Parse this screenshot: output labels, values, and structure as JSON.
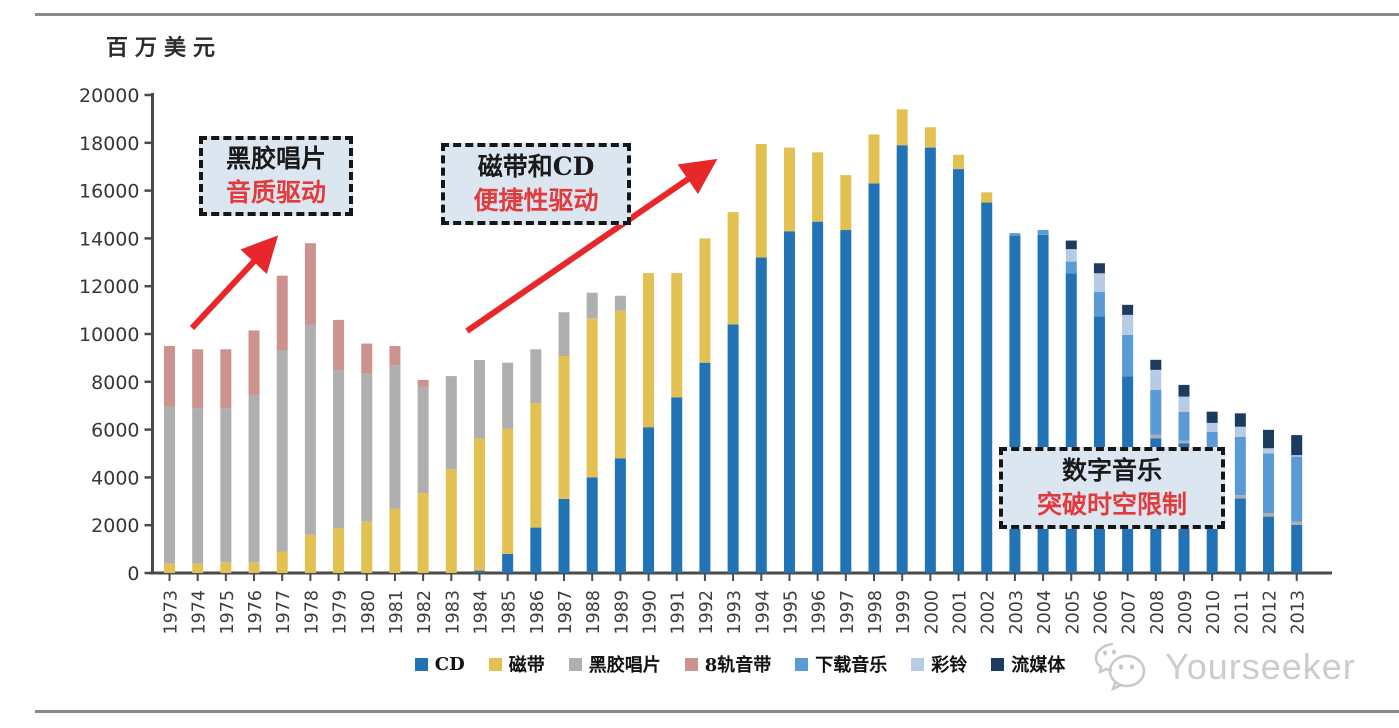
{
  "page": {
    "unit_label": "百万美元"
  },
  "chart_data": {
    "type": "bar",
    "stacked": true,
    "title": "",
    "ylabel": "百万美元",
    "xlabel": "",
    "ylim": [
      0,
      20000
    ],
    "ytick_step": 2000,
    "grid": false,
    "legend_position": "bottom",
    "categories": [
      "1973",
      "1974",
      "1975",
      "1976",
      "1977",
      "1978",
      "1979",
      "1980",
      "1981",
      "1982",
      "1983",
      "1984",
      "1985",
      "1986",
      "1987",
      "1988",
      "1989",
      "1990",
      "1991",
      "1992",
      "1993",
      "1994",
      "1995",
      "1996",
      "1997",
      "1998",
      "1999",
      "2000",
      "2001",
      "2002",
      "2003",
      "2004",
      "2005",
      "2006",
      "2007",
      "2008",
      "2009",
      "2010",
      "2011",
      "2012",
      "2013"
    ],
    "series": [
      {
        "name": "CD",
        "color": "#2273B5",
        "values": [
          0,
          0,
          0,
          0,
          0,
          0,
          0,
          0,
          0,
          0,
          0,
          100,
          800,
          1900,
          3100,
          4000,
          4800,
          6100,
          7350,
          8800,
          10400,
          13200,
          14300,
          14700,
          14350,
          16300,
          17900,
          17800,
          16900,
          15500,
          14100,
          14150,
          12540,
          10730,
          8220,
          5640,
          5430,
          4350,
          3120,
          2360,
          2010
        ]
      },
      {
        "name": "磁带",
        "color": "#E2C152",
        "values": [
          400,
          400,
          450,
          450,
          900,
          1600,
          1870,
          2150,
          2700,
          3340,
          4340,
          5530,
          5230,
          5200,
          5980,
          6660,
          6180,
          6450,
          5200,
          5200,
          4700,
          4750,
          3500,
          2900,
          2300,
          2050,
          1500,
          850,
          600,
          430,
          0,
          0,
          0,
          0,
          0,
          0,
          0,
          0,
          0,
          0,
          0
        ]
      },
      {
        "name": "黑胶唱片",
        "color": "#AFAFAF",
        "values": [
          6550,
          6500,
          6450,
          7000,
          8430,
          8780,
          6620,
          6200,
          6000,
          4460,
          3900,
          3280,
          2770,
          2260,
          1830,
          1070,
          620,
          0,
          0,
          0,
          0,
          0,
          0,
          0,
          0,
          0,
          0,
          0,
          0,
          0,
          0,
          0,
          0,
          0,
          0,
          140,
          100,
          90,
          140,
          140,
          140
        ]
      },
      {
        "name": "8轨音带",
        "color": "#CC928E",
        "values": [
          2550,
          2460,
          2460,
          2700,
          3110,
          3420,
          2100,
          1250,
          800,
          280,
          0,
          0,
          0,
          0,
          0,
          0,
          0,
          0,
          0,
          0,
          0,
          0,
          0,
          0,
          0,
          0,
          0,
          0,
          0,
          0,
          0,
          0,
          0,
          0,
          0,
          0,
          0,
          0,
          0,
          0,
          0
        ]
      },
      {
        "name": "下载音乐",
        "color": "#5B9BD5",
        "values": [
          0,
          0,
          0,
          0,
          0,
          0,
          0,
          0,
          0,
          0,
          0,
          0,
          0,
          0,
          0,
          0,
          0,
          0,
          0,
          0,
          0,
          0,
          0,
          0,
          0,
          0,
          0,
          0,
          0,
          0,
          120,
          200,
          490,
          1040,
          1740,
          1880,
          1220,
          1460,
          2440,
          2510,
          2720
        ]
      },
      {
        "name": "彩铃",
        "color": "#B7CBE6",
        "values": [
          0,
          0,
          0,
          0,
          0,
          0,
          0,
          0,
          0,
          0,
          0,
          0,
          0,
          0,
          0,
          0,
          0,
          0,
          0,
          0,
          0,
          0,
          0,
          0,
          0,
          0,
          0,
          0,
          0,
          0,
          0,
          0,
          520,
          770,
          840,
          840,
          630,
          380,
          420,
          210,
          60
        ]
      },
      {
        "name": "流媒体",
        "color": "#1C3C5F",
        "values": [
          0,
          0,
          0,
          0,
          0,
          0,
          0,
          0,
          0,
          0,
          0,
          0,
          0,
          0,
          0,
          0,
          0,
          0,
          0,
          0,
          0,
          0,
          0,
          0,
          0,
          0,
          0,
          0,
          0,
          0,
          0,
          0,
          360,
          420,
          420,
          420,
          490,
          470,
          560,
          770,
          840
        ]
      }
    ]
  },
  "annotations": [
    {
      "line1": "黑胶唱片",
      "line2": "音质驱动"
    },
    {
      "line1": "磁带和CD",
      "line2": "便捷性驱动"
    },
    {
      "line1": "数字音乐",
      "line2": "突破时空限制"
    }
  ],
  "arrows": {
    "color": "#E8272B"
  },
  "watermark": {
    "icon": "wechat-icon",
    "text": "Yourseeker"
  }
}
